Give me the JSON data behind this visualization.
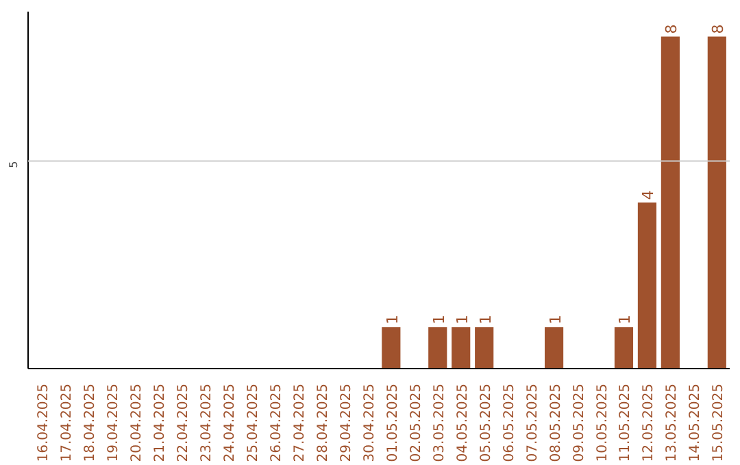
{
  "chart_data": {
    "type": "bar",
    "categories": [
      "16.04.2025",
      "17.04.2025",
      "18.04.2025",
      "19.04.2025",
      "20.04.2025",
      "21.04.2025",
      "22.04.2025",
      "23.04.2025",
      "24.04.2025",
      "25.04.2025",
      "26.04.2025",
      "27.04.2025",
      "28.04.2025",
      "29.04.2025",
      "30.04.2025",
      "01.05.2025",
      "02.05.2025",
      "03.05.2025",
      "04.05.2025",
      "05.05.2025",
      "06.05.2025",
      "07.05.2025",
      "08.05.2025",
      "09.05.2025",
      "10.05.2025",
      "11.05.2025",
      "12.05.2025",
      "13.05.2025",
      "14.05.2025",
      "15.05.2025"
    ],
    "values": [
      null,
      null,
      null,
      null,
      null,
      null,
      null,
      null,
      null,
      null,
      null,
      null,
      null,
      null,
      null,
      1,
      null,
      1,
      1,
      1,
      null,
      null,
      1,
      null,
      null,
      1,
      4,
      8,
      null,
      8
    ],
    "value_labels": [
      null,
      null,
      null,
      null,
      null,
      null,
      null,
      null,
      null,
      null,
      null,
      null,
      null,
      null,
      null,
      "1",
      null,
      "1",
      "1",
      "1",
      null,
      null,
      "1",
      null,
      null,
      "1",
      "4",
      "8",
      null,
      "8"
    ],
    "color": "#a0522d",
    "ylim": [
      0,
      8.6
    ],
    "ref_lines": [
      {
        "axis": "y",
        "value": 5,
        "label": "5",
        "color": "#cccccc"
      }
    ]
  }
}
